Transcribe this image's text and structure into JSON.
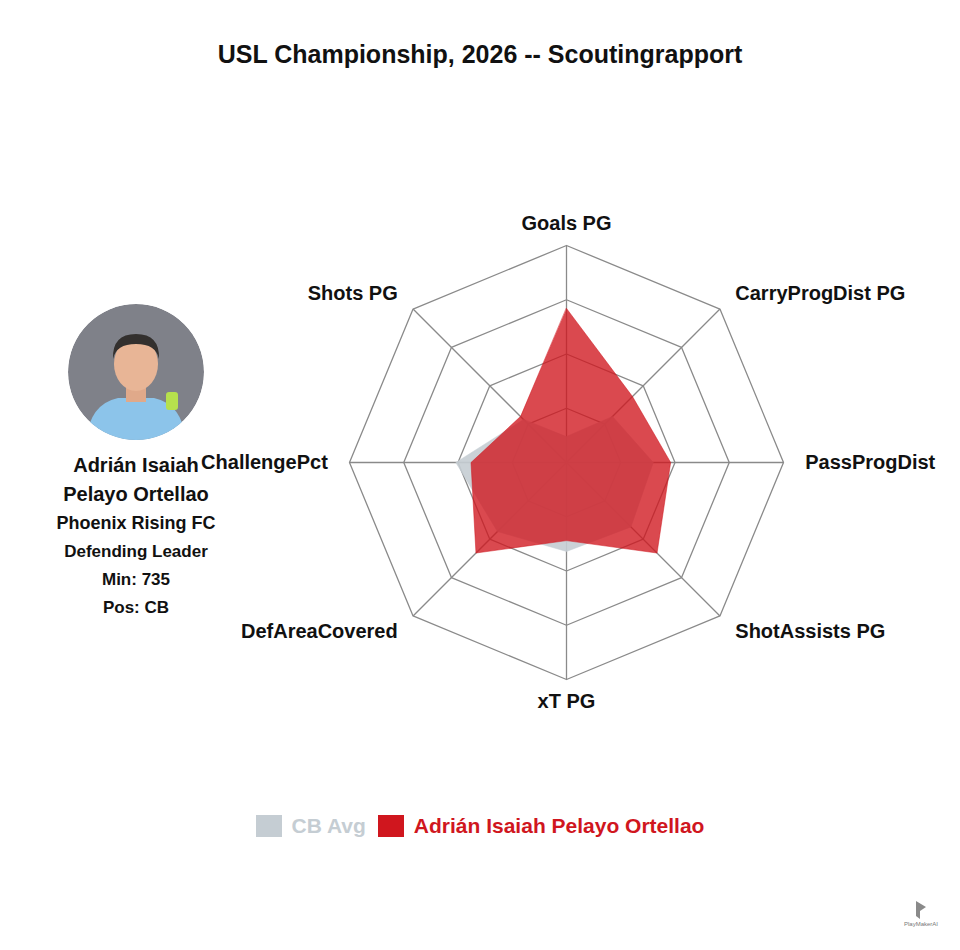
{
  "chart_data": {
    "type": "radar",
    "title": "USL Championship, 2026 -- Scoutingrapport",
    "categories": [
      "Goals PG",
      "CarryProgDist PG",
      "PassProgDist",
      "ShotAssists PG",
      "xT PG",
      "DefAreaCovered",
      "ChallengePct",
      "Shots PG"
    ],
    "series": [
      {
        "name": "CB Avg",
        "color": "#c5cdd3",
        "values": [
          12,
          30,
          40,
          42,
          41,
          45,
          51,
          28
        ]
      },
      {
        "name": "Adrián Isaiah Pelayo Ortellao",
        "color": "#d0161e",
        "values": [
          71,
          43,
          48,
          59,
          36,
          59,
          44,
          30
        ]
      }
    ],
    "rlim": [
      0,
      100
    ],
    "rticks": [
      25,
      50,
      75,
      100
    ],
    "tick_labels": false,
    "grid": true,
    "legend": "bottom",
    "player": {
      "name": "Adrián Isaiah Pelayo Ortellao",
      "team": "Phoenix Rising FC",
      "role": "Defending Leader",
      "stats": [
        {
          "label": "Min:",
          "value": 735
        },
        {
          "label": "Pos:",
          "value": "CB"
        }
      ]
    },
    "watermark": "PlayMakerAI"
  }
}
